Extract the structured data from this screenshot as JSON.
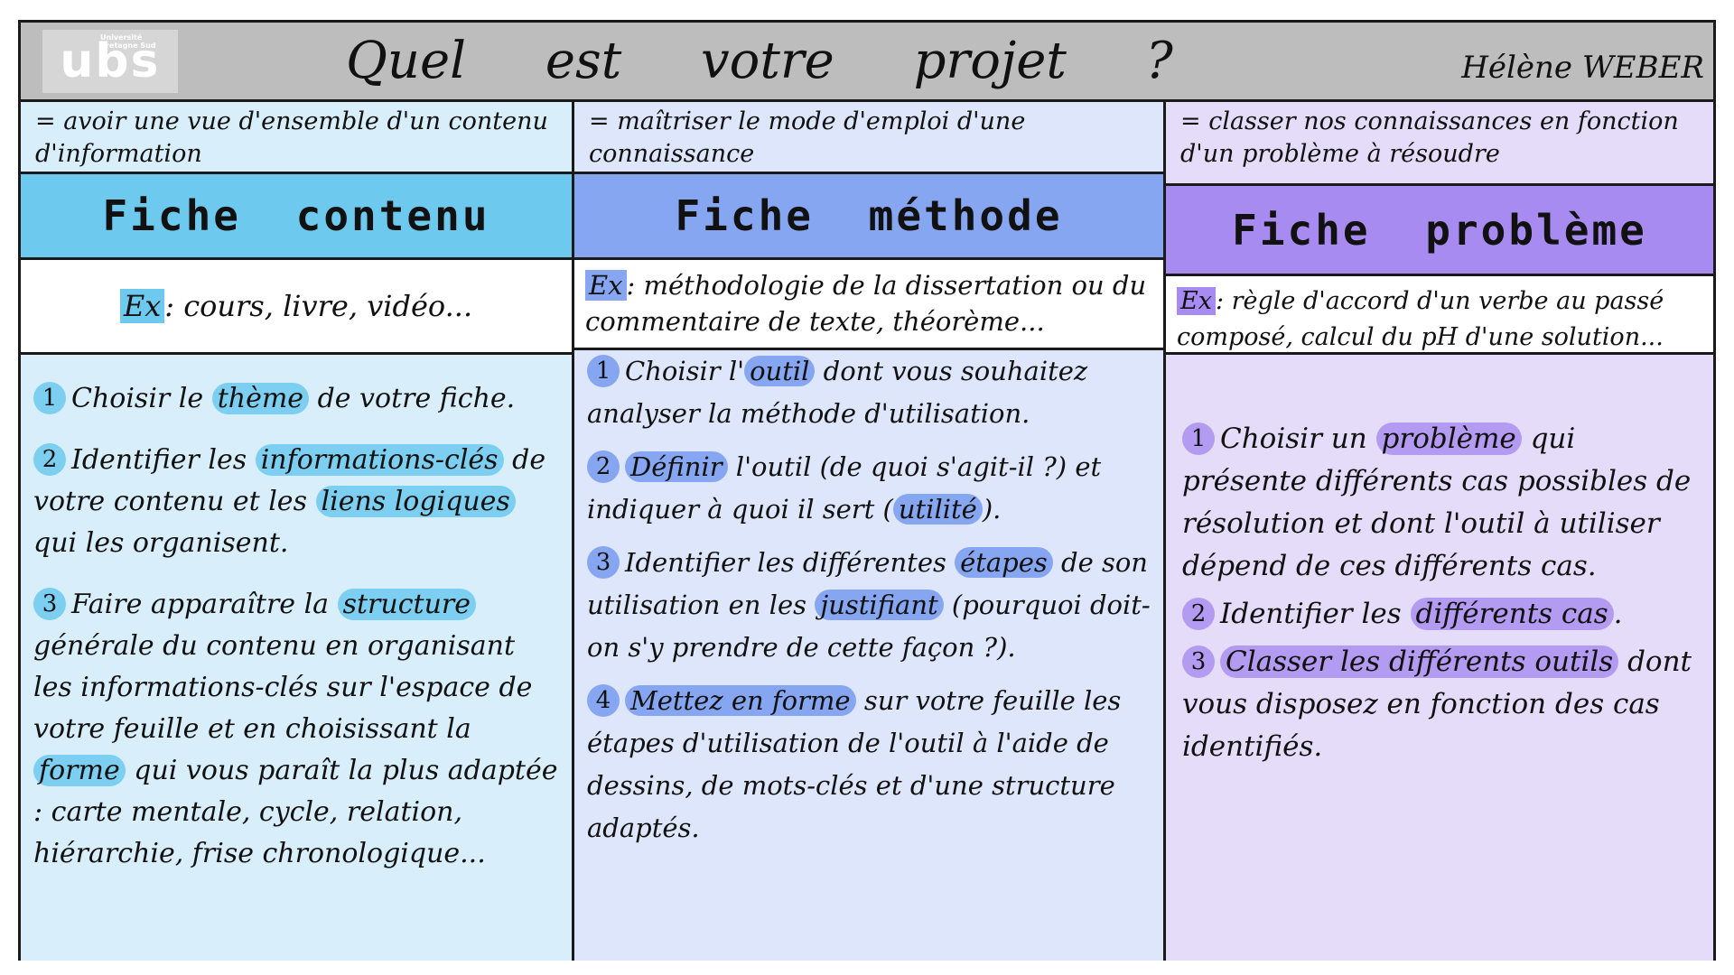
{
  "header": {
    "logo_text": "ubs",
    "logo_caption": "Université Bretagne Sud",
    "title": "Quel est votre projet ?",
    "author": "Hélène WEBER"
  },
  "colors": {
    "contenu": "#6dc9ee",
    "methode": "#86a6f1",
    "probleme": "#a88bf0"
  },
  "columns": [
    {
      "definition": "= avoir une vue d'ensemble d'un contenu d'information",
      "heading": "Fiche contenu",
      "example_tag": "Ex",
      "example_text": ": cours, livre, vidéo...",
      "steps": [
        {
          "num": "1",
          "before": "Choisir le ",
          "highlight": "thème",
          "after": " de votre fiche."
        },
        {
          "num": "2",
          "before": "Identifier les ",
          "highlight": "informations-clés",
          "middle": " de votre contenu et les ",
          "highlight2": "liens logiques",
          "after": " qui les organisent."
        },
        {
          "num": "3",
          "before": "Faire apparaître la ",
          "highlight": "structure",
          "middle": " générale du contenu en organisant les informations-clés sur l'espace de votre feuille et en choisissant la ",
          "highlight2": "forme",
          "after": " qui vous paraît la plus adaptée : carte mentale, cycle, relation, hiérarchie, frise chronologique..."
        }
      ]
    },
    {
      "definition": "= maîtriser le mode d'emploi d'une connaissance",
      "heading": "Fiche méthode",
      "example_tag": "Ex",
      "example_text": ": méthodologie de la dissertation ou du commentaire de texte, théorème...",
      "steps": [
        {
          "num": "1",
          "before": "Choisir l'",
          "highlight": "outil",
          "after": " dont vous souhaitez analyser la méthode d'utilisation."
        },
        {
          "num": "2",
          "before": "",
          "highlight": "Définir",
          "middle": " l'outil (de quoi s'agit-il ?) et indiquer à quoi il sert (",
          "highlight2": "utilité",
          "after": ")."
        },
        {
          "num": "3",
          "before": "Identifier les différentes ",
          "highlight": "étapes",
          "middle": " de son utilisation en les ",
          "highlight2": "justifiant",
          "after": " (pourquoi doit-on s'y prendre de cette façon ?)."
        },
        {
          "num": "4",
          "before": "",
          "highlight": "Mettez en forme",
          "after": " sur votre feuille les étapes d'utilisation de l'outil à l'aide de dessins, de mots-clés et d'une structure adaptés."
        }
      ]
    },
    {
      "definition": "= classer nos connaissances en fonction d'un problème à résoudre",
      "heading": "Fiche problème",
      "example_tag": "Ex",
      "example_text": ": règle d'accord d'un verbe au passé composé, calcul du pH d'une solution...",
      "steps": [
        {
          "num": "1",
          "before": "Choisir un ",
          "highlight": "problème",
          "after": " qui présente différents cas possibles de résolution et dont l'outil à utiliser dépend de ces différents cas."
        },
        {
          "num": "2",
          "before": "Identifier les ",
          "highlight": "différents cas",
          "after": "."
        },
        {
          "num": "3",
          "before": "",
          "highlight": "Classer les différents outils",
          "after": " dont vous disposez en fonction des cas identifiés."
        }
      ]
    }
  ]
}
